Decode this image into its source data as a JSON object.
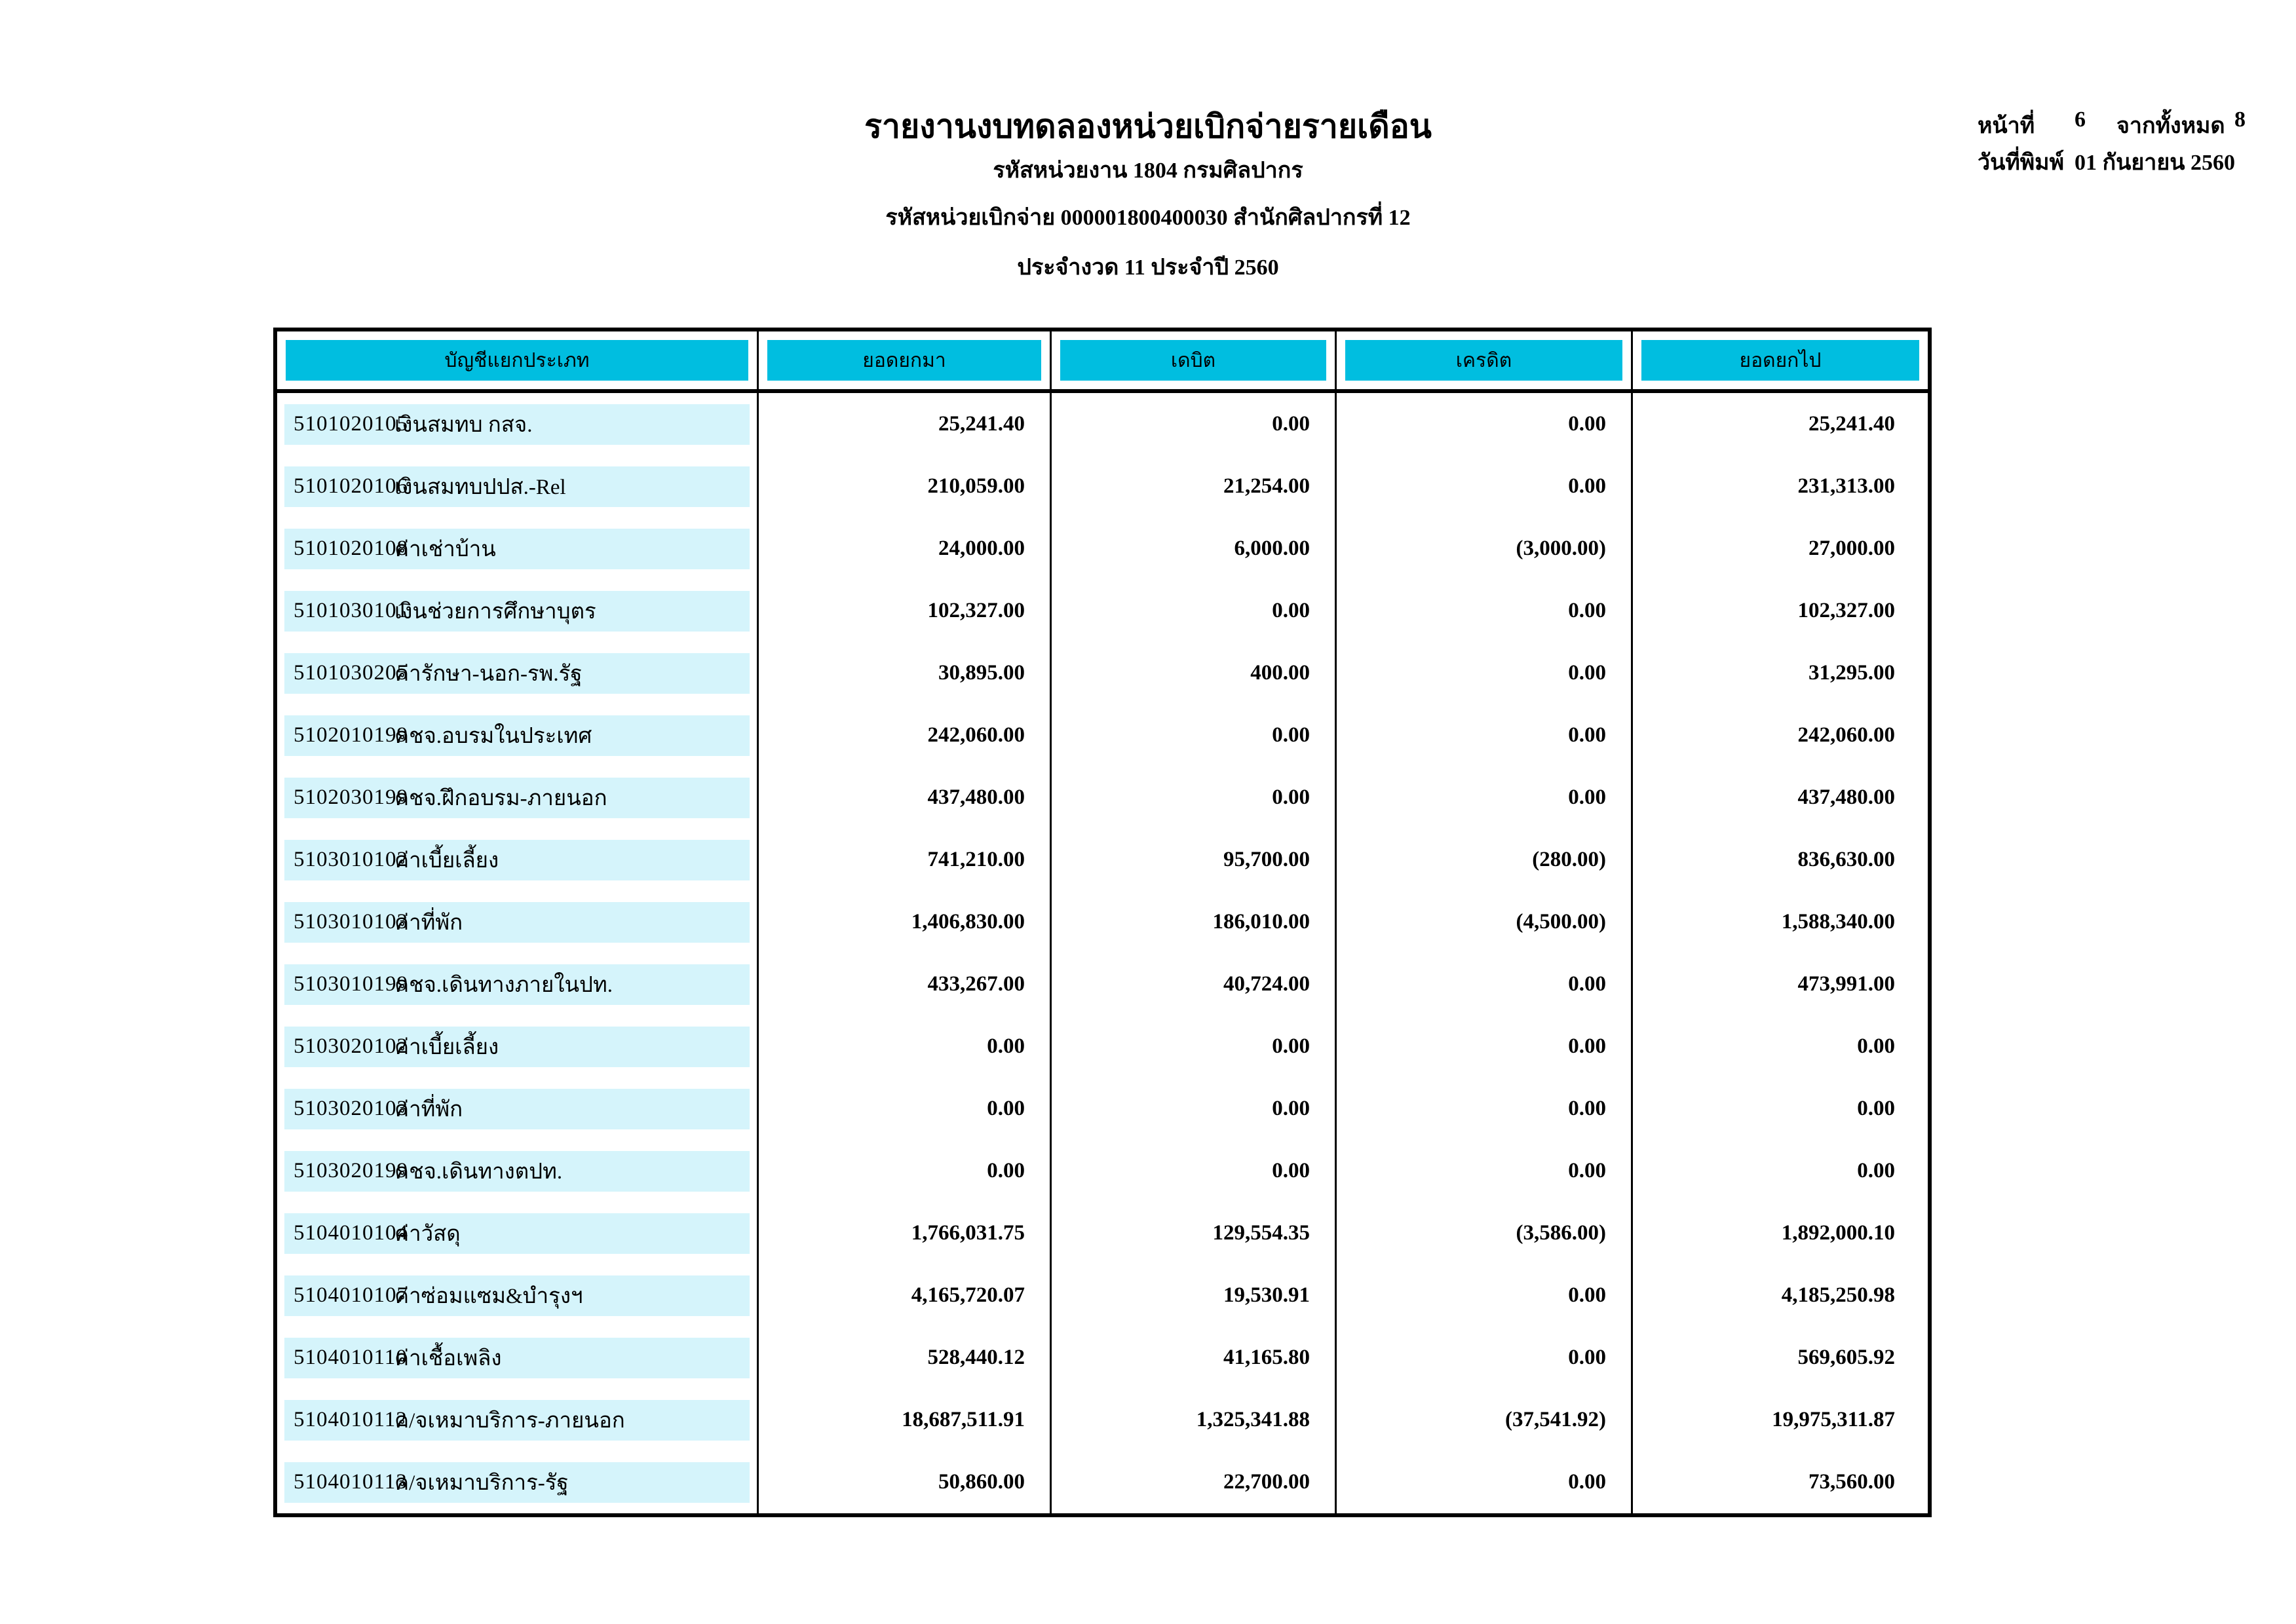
{
  "page": {
    "title": "รายงานงบทดลองหน่วยเบิกจ่ายรายเดือน",
    "agency_line": "รหัสหน่วยงาน 1804 กรมศิลปากร",
    "unit_line": "รหัสหน่วยเบิกจ่าย 000001800400030 สำนักศิลปากรที่ 12",
    "period_line": "ประจำงวด 11 ประจำปี 2560",
    "page_label": "หน้าที่",
    "page_number": "6",
    "total_label": "จากทั้งหมด",
    "total_pages": "8",
    "print_date_label": "วันที่พิมพ์",
    "print_date": "01 กันยายน 2560"
  },
  "colors": {
    "header_band": "#00BEE0",
    "row_band": "#D5F4FB"
  },
  "table": {
    "columns": [
      "บัญชีแยกประเภท",
      "ยอดยกมา",
      "เดบิต",
      "เครดิต",
      "ยอดยกไป"
    ],
    "rows": [
      {
        "code": "5101020105",
        "name": "เงินสมทบ กสจ.",
        "bf": "25,241.40",
        "debit": "0.00",
        "credit": "0.00",
        "cf": "25,241.40"
      },
      {
        "code": "5101020106",
        "name": "เงินสมทบปปส.-Rel",
        "bf": "210,059.00",
        "debit": "21,254.00",
        "credit": "0.00",
        "cf": "231,313.00"
      },
      {
        "code": "5101020108",
        "name": "ค่าเช่าบ้าน",
        "bf": "24,000.00",
        "debit": "6,000.00",
        "credit": "(3,000.00)",
        "cf": "27,000.00"
      },
      {
        "code": "5101030101",
        "name": "เงินช่วยการศึกษาบุตร",
        "bf": "102,327.00",
        "debit": "0.00",
        "credit": "0.00",
        "cf": "102,327.00"
      },
      {
        "code": "5101030205",
        "name": "ค่ารักษา-นอก-รพ.รัฐ",
        "bf": "30,895.00",
        "debit": "400.00",
        "credit": "0.00",
        "cf": "31,295.00"
      },
      {
        "code": "5102010199",
        "name": "คชจ.อบรมในประเทศ",
        "bf": "242,060.00",
        "debit": "0.00",
        "credit": "0.00",
        "cf": "242,060.00"
      },
      {
        "code": "5102030199",
        "name": "คชจ.ฝึกอบรม-ภายนอก",
        "bf": "437,480.00",
        "debit": "0.00",
        "credit": "0.00",
        "cf": "437,480.00"
      },
      {
        "code": "5103010102",
        "name": "ค่าเบี้ยเลี้ยง",
        "bf": "741,210.00",
        "debit": "95,700.00",
        "credit": "(280.00)",
        "cf": "836,630.00"
      },
      {
        "code": "5103010103",
        "name": "ค่าที่พัก",
        "bf": "1,406,830.00",
        "debit": "186,010.00",
        "credit": "(4,500.00)",
        "cf": "1,588,340.00"
      },
      {
        "code": "5103010199",
        "name": "คชจ.เดินทางภายในปท.",
        "bf": "433,267.00",
        "debit": "40,724.00",
        "credit": "0.00",
        "cf": "473,991.00"
      },
      {
        "code": "5103020102",
        "name": "ค่าเบี้ยเลี้ยง",
        "bf": "0.00",
        "debit": "0.00",
        "credit": "0.00",
        "cf": "0.00"
      },
      {
        "code": "5103020103",
        "name": "ค่าที่พัก",
        "bf": "0.00",
        "debit": "0.00",
        "credit": "0.00",
        "cf": "0.00"
      },
      {
        "code": "5103020199",
        "name": "คชจ.เดินทางตปท.",
        "bf": "0.00",
        "debit": "0.00",
        "credit": "0.00",
        "cf": "0.00"
      },
      {
        "code": "5104010104",
        "name": "ค่าวัสดุ",
        "bf": "1,766,031.75",
        "debit": "129,554.35",
        "credit": "(3,586.00)",
        "cf": "1,892,000.10"
      },
      {
        "code": "5104010107",
        "name": "ค่าซ่อมแซม&บำรุงฯ",
        "bf": "4,165,720.07",
        "debit": "19,530.91",
        "credit": "0.00",
        "cf": "4,185,250.98"
      },
      {
        "code": "5104010110",
        "name": "ค่าเชื้อเพลิง",
        "bf": "528,440.12",
        "debit": "41,165.80",
        "credit": "0.00",
        "cf": "569,605.92"
      },
      {
        "code": "5104010112",
        "name": "ค/จเหมาบริการ-ภายนอก",
        "bf": "18,687,511.91",
        "debit": "1,325,341.88",
        "credit": "(37,541.92)",
        "cf": "19,975,311.87"
      },
      {
        "code": "5104010113",
        "name": "ค/จเหมาบริการ-รัฐ",
        "bf": "50,860.00",
        "debit": "22,700.00",
        "credit": "0.00",
        "cf": "73,560.00"
      }
    ]
  }
}
